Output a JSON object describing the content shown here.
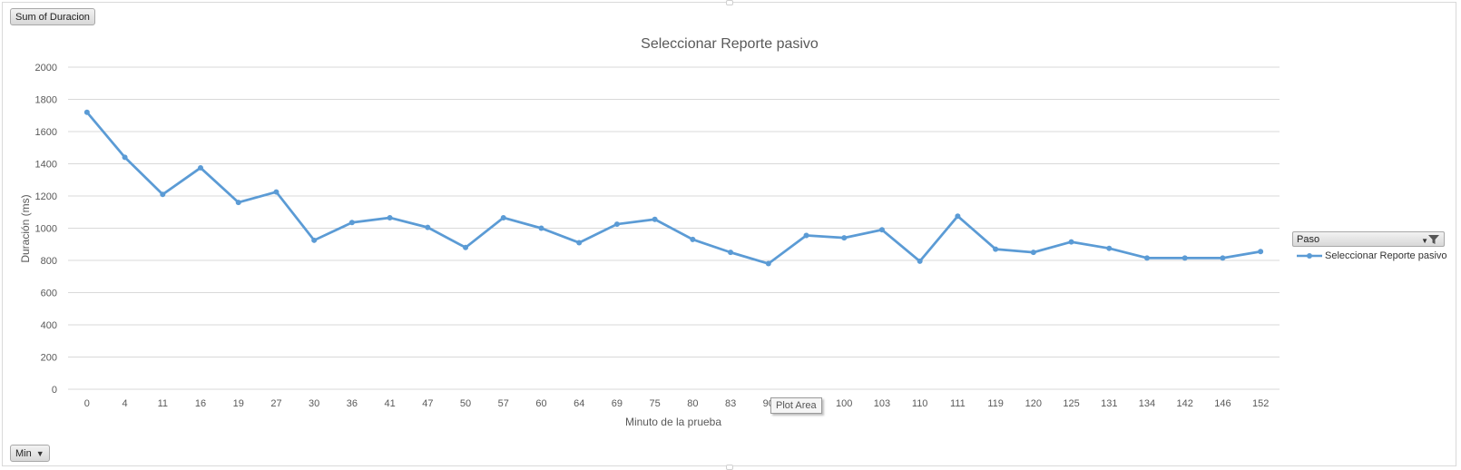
{
  "field_buttons": {
    "values_field": "Sum of Duracion",
    "axis_field": "Min",
    "legend_field": "Paso"
  },
  "tooltip": "Plot Area",
  "colors": {
    "series": "#5b9bd5",
    "gridline": "#d9d9d9",
    "text": "#595959"
  },
  "chart_data": {
    "type": "line",
    "title": "Seleccionar Reporte pasivo",
    "xlabel": "Minuto de la prueba",
    "ylabel": "Duración (ms)",
    "ylim": [
      0,
      2000
    ],
    "yticks": [
      "0",
      "200",
      "400",
      "600",
      "800",
      "1000",
      "1200",
      "1400",
      "1600",
      "1800",
      "2000"
    ],
    "grid": true,
    "legend_position": "right",
    "categories": [
      "0",
      "4",
      "11",
      "16",
      "19",
      "27",
      "30",
      "36",
      "41",
      "47",
      "50",
      "57",
      "60",
      "64",
      "69",
      "75",
      "80",
      "83",
      "90",
      "98",
      "100",
      "103",
      "110",
      "111",
      "119",
      "120",
      "125",
      "131",
      "134",
      "142",
      "146",
      "152"
    ],
    "series": [
      {
        "name": "Seleccionar Reporte pasivo",
        "values": [
          1720,
          1440,
          1210,
          1375,
          1160,
          1225,
          925,
          1035,
          1065,
          1005,
          880,
          1065,
          1000,
          910,
          1025,
          1055,
          930,
          850,
          780,
          955,
          940,
          990,
          795,
          1075,
          870,
          850,
          915,
          875,
          815,
          815,
          815,
          855
        ]
      }
    ]
  }
}
